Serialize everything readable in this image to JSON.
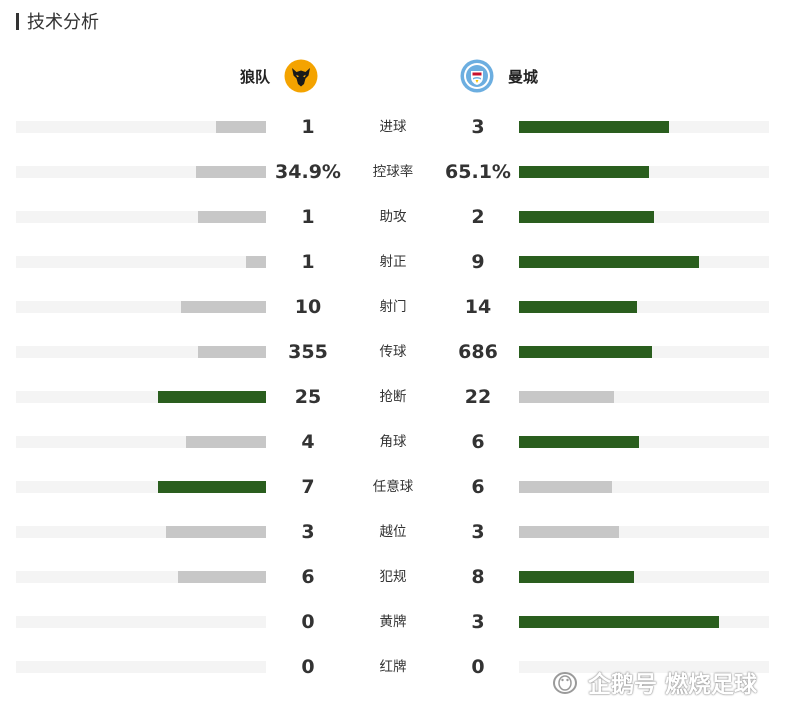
{
  "section": {
    "title": "技术分析"
  },
  "teams": {
    "home": {
      "name": "狼队",
      "crest_icon": "wolf-crest-icon",
      "crest_color": "#f4a300"
    },
    "away": {
      "name": "曼城",
      "crest_icon": "city-crest-icon",
      "crest_color": "#6caee0"
    }
  },
  "colors": {
    "winner_bar": "#2a5e1e",
    "loser_bar": "#c7c7c7",
    "track": "#f4f4f4"
  },
  "stats": [
    {
      "label": "进球",
      "home": "1",
      "away": "3",
      "home_fill": 0.2,
      "away_fill": 0.6,
      "leader": "away"
    },
    {
      "label": "控球率",
      "home": "34.9%",
      "away": "65.1%",
      "home_fill": 0.28,
      "away_fill": 0.52,
      "leader": "away"
    },
    {
      "label": "助攻",
      "home": "1",
      "away": "2",
      "home_fill": 0.27,
      "away_fill": 0.54,
      "leader": "away"
    },
    {
      "label": "射正",
      "home": "1",
      "away": "9",
      "home_fill": 0.08,
      "away_fill": 0.72,
      "leader": "away"
    },
    {
      "label": "射门",
      "home": "10",
      "away": "14",
      "home_fill": 0.34,
      "away_fill": 0.47,
      "leader": "away"
    },
    {
      "label": "传球",
      "home": "355",
      "away": "686",
      "home_fill": 0.27,
      "away_fill": 0.53,
      "leader": "away"
    },
    {
      "label": "抢断",
      "home": "25",
      "away": "22",
      "home_fill": 0.43,
      "away_fill": 0.38,
      "leader": "home"
    },
    {
      "label": "角球",
      "home": "4",
      "away": "6",
      "home_fill": 0.32,
      "away_fill": 0.48,
      "leader": "away"
    },
    {
      "label": "任意球",
      "home": "7",
      "away": "6",
      "home_fill": 0.43,
      "away_fill": 0.37,
      "leader": "home"
    },
    {
      "label": "越位",
      "home": "3",
      "away": "3",
      "home_fill": 0.4,
      "away_fill": 0.4,
      "leader": "none"
    },
    {
      "label": "犯规",
      "home": "6",
      "away": "8",
      "home_fill": 0.35,
      "away_fill": 0.46,
      "leader": "away"
    },
    {
      "label": "黄牌",
      "home": "0",
      "away": "3",
      "home_fill": 0.0,
      "away_fill": 0.8,
      "leader": "away"
    },
    {
      "label": "红牌",
      "home": "0",
      "away": "0",
      "home_fill": 0.0,
      "away_fill": 0.0,
      "leader": "none"
    }
  ],
  "watermark": {
    "text": "企鹅号 燃烧足球",
    "icon": "penguin-logo-icon"
  }
}
